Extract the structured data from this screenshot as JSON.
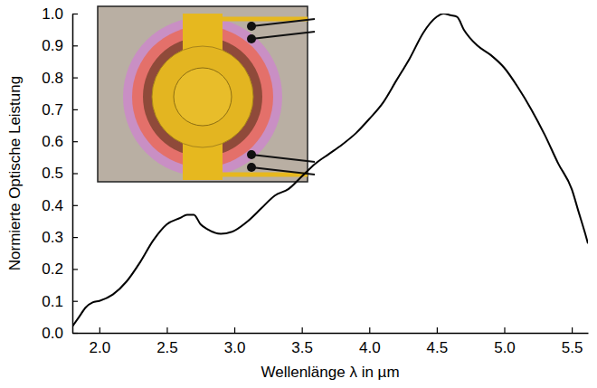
{
  "chart_data": {
    "type": "line",
    "x_label": "Wellenlänge λ in µm",
    "y_label": "Normierte Optische Leistung",
    "color": "#000000",
    "grid": false,
    "xlim": [
      1.8,
      5.62
    ],
    "ylim": [
      0.0,
      1.0
    ],
    "xticks": [
      {
        "value": 2.0,
        "label": "2.0"
      },
      {
        "value": 2.5,
        "label": "2.5"
      },
      {
        "value": 3.0,
        "label": "3.0"
      },
      {
        "value": 3.5,
        "label": "3.5"
      },
      {
        "value": 4.0,
        "label": "4.0"
      },
      {
        "value": 4.5,
        "label": "4.5"
      },
      {
        "value": 5.0,
        "label": "5.0"
      },
      {
        "value": 5.5,
        "label": "5.5"
      }
    ],
    "yticks": [
      {
        "value": 0.0,
        "label": "0.0"
      },
      {
        "value": 0.1,
        "label": "0.1"
      },
      {
        "value": 0.2,
        "label": "0.2"
      },
      {
        "value": 0.3,
        "label": "0.3"
      },
      {
        "value": 0.4,
        "label": "0.4"
      },
      {
        "value": 0.5,
        "label": "0.5"
      },
      {
        "value": 0.6,
        "label": "0.6"
      },
      {
        "value": 0.7,
        "label": "0.7"
      },
      {
        "value": 0.8,
        "label": "0.8"
      },
      {
        "value": 0.9,
        "label": "0.9"
      },
      {
        "value": 1.0,
        "label": "1.0"
      }
    ],
    "x": [
      1.8,
      1.85,
      1.9,
      1.95,
      2.0,
      2.1,
      2.2,
      2.3,
      2.4,
      2.5,
      2.6,
      2.65,
      2.7,
      2.75,
      2.8,
      2.9,
      3.0,
      3.1,
      3.2,
      3.3,
      3.4,
      3.5,
      3.6,
      3.7,
      3.8,
      3.9,
      4.0,
      4.1,
      4.2,
      4.3,
      4.4,
      4.5,
      4.55,
      4.6,
      4.65,
      4.7,
      4.8,
      4.9,
      5.0,
      5.1,
      5.2,
      5.3,
      5.4,
      5.5,
      5.55,
      5.6,
      5.62
    ],
    "values": [
      0.02,
      0.05,
      0.08,
      0.095,
      0.1,
      0.12,
      0.16,
      0.22,
      0.29,
      0.34,
      0.36,
      0.37,
      0.37,
      0.34,
      0.325,
      0.31,
      0.32,
      0.35,
      0.39,
      0.43,
      0.45,
      0.49,
      0.53,
      0.56,
      0.59,
      0.625,
      0.67,
      0.72,
      0.79,
      0.86,
      0.94,
      0.99,
      1.0,
      0.995,
      0.99,
      0.95,
      0.9,
      0.87,
      0.83,
      0.77,
      0.7,
      0.62,
      0.53,
      0.45,
      0.38,
      0.31,
      0.28
    ]
  }
}
